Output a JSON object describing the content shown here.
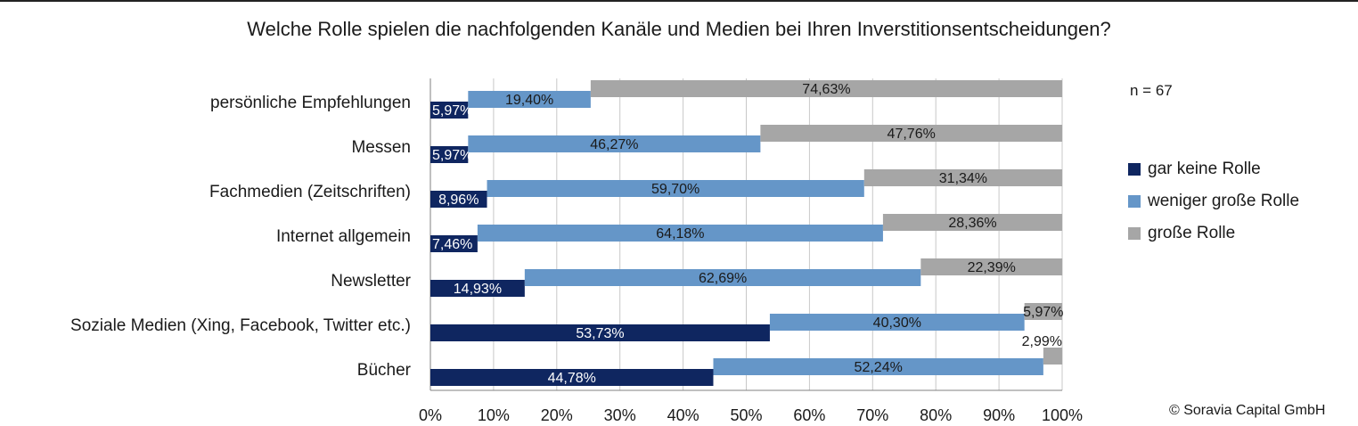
{
  "chart_data": {
    "type": "bar",
    "orientation": "horizontal",
    "stacked": true,
    "title": "Welche Rolle spielen die nachfolgenden Kanäle und Medien bei Ihren Inverstitionsentscheidungen?",
    "categories": [
      "persönliche Empfehlungen",
      "Messen",
      "Fachmedien (Zeitschriften)",
      "Internet allgemein",
      "Newsletter",
      "Soziale Medien (Xing, Facebook, Twitter etc.)",
      "Bücher"
    ],
    "series": [
      {
        "name": "gar keine Rolle",
        "color": "#0f2660",
        "values": [
          5.97,
          5.97,
          8.96,
          7.46,
          14.93,
          53.73,
          44.78
        ],
        "labels": [
          "5,97%",
          "5,97%",
          "8,96%",
          "7,46%",
          "14,93%",
          "53,73%",
          "44,78%"
        ]
      },
      {
        "name": "weniger große Rolle",
        "color": "#6596c8",
        "values": [
          19.4,
          46.27,
          59.7,
          64.18,
          62.69,
          40.3,
          52.24
        ],
        "labels": [
          "19,40%",
          "46,27%",
          "59,70%",
          "64,18%",
          "62,69%",
          "40,30%",
          "52,24%"
        ]
      },
      {
        "name": "große Rolle",
        "color": "#a6a6a6",
        "values": [
          74.63,
          47.76,
          31.34,
          28.36,
          22.39,
          5.97,
          2.99
        ],
        "labels": [
          "74,63%",
          "47,76%",
          "31,34%",
          "28,36%",
          "22,39%",
          "5,97%",
          "2,99%"
        ]
      }
    ],
    "xlim": [
      0,
      100
    ],
    "xticks": [
      "0%",
      "10%",
      "20%",
      "30%",
      "40%",
      "50%",
      "60%",
      "70%",
      "80%",
      "90%",
      "100%"
    ],
    "grid": true,
    "legend_position": "right"
  },
  "note": "n = 67",
  "copyright": "© Soravia Capital GmbH"
}
